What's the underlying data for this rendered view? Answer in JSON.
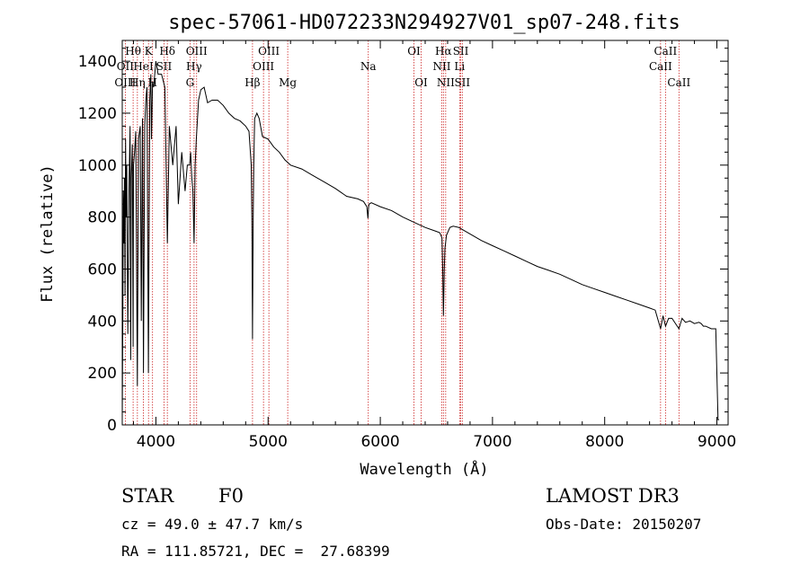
{
  "chart_data": {
    "type": "line",
    "title": "spec-57061-HD072233N294927V01_sp07-248.fits",
    "xlabel": "Wavelength (Å)",
    "ylabel": "Flux (relative)",
    "xlim": [
      3700,
      9100
    ],
    "ylim": [
      0,
      1480
    ],
    "xticks": [
      4000,
      5000,
      6000,
      7000,
      8000,
      9000
    ],
    "yticks": [
      0,
      200,
      400,
      600,
      800,
      1000,
      1200,
      1400
    ],
    "series": [
      {
        "name": "flux",
        "x": [
          3700,
          3705,
          3710,
          3715,
          3720,
          3725,
          3730,
          3735,
          3740,
          3750,
          3760,
          3770,
          3775,
          3780,
          3790,
          3797,
          3800,
          3810,
          3820,
          3835,
          3845,
          3860,
          3870,
          3880,
          3889,
          3900,
          3910,
          3920,
          3933,
          3945,
          3955,
          3960,
          3970,
          3980,
          4000,
          4020,
          4050,
          4080,
          4102,
          4120,
          4150,
          4180,
          4200,
          4230,
          4260,
          4280,
          4300,
          4310,
          4320,
          4330,
          4340,
          4350,
          4360,
          4380,
          4400,
          4430,
          4460,
          4500,
          4550,
          4600,
          4650,
          4700,
          4750,
          4800,
          4830,
          4850,
          4855,
          4861,
          4867,
          4872,
          4880,
          4900,
          4920,
          4950,
          5000,
          5050,
          5100,
          5150,
          5200,
          5300,
          5400,
          5500,
          5600,
          5700,
          5800,
          5850,
          5880,
          5890,
          5896,
          5900,
          5920,
          6000,
          6100,
          6200,
          6300,
          6400,
          6500,
          6530,
          6550,
          6556,
          6563,
          6570,
          6576,
          6590,
          6620,
          6650,
          6700,
          6800,
          6900,
          7000,
          7100,
          7200,
          7300,
          7400,
          7500,
          7600,
          7700,
          7800,
          7900,
          8000,
          8100,
          8200,
          8300,
          8400,
          8450,
          8498,
          8520,
          8542,
          8570,
          8600,
          8662,
          8690,
          8720,
          8760,
          8800,
          8840,
          8860,
          8880,
          8900,
          8950,
          8990,
          9000,
          9010,
          9020
        ],
        "values": [
          20,
          400,
          900,
          700,
          950,
          500,
          1100,
          800,
          1000,
          350,
          900,
          1150,
          250,
          950,
          1080,
          300,
          1000,
          1050,
          1130,
          150,
          1100,
          1150,
          400,
          1180,
          200,
          1150,
          1250,
          1300,
          200,
          1250,
          1350,
          1100,
          1320,
          1300,
          1400,
          1350,
          1350,
          1300,
          700,
          1150,
          1000,
          1150,
          850,
          1050,
          900,
          1000,
          1000,
          1050,
          950,
          900,
          700,
          1000,
          1100,
          1250,
          1290,
          1300,
          1240,
          1250,
          1250,
          1230,
          1200,
          1180,
          1170,
          1150,
          1130,
          1000,
          800,
          330,
          800,
          1000,
          1180,
          1200,
          1180,
          1110,
          1100,
          1070,
          1050,
          1020,
          1000,
          985,
          960,
          935,
          910,
          880,
          870,
          860,
          840,
          795,
          840,
          850,
          855,
          840,
          825,
          800,
          780,
          760,
          745,
          740,
          720,
          600,
          420,
          590,
          680,
          730,
          760,
          765,
          760,
          735,
          710,
          690,
          670,
          650,
          630,
          610,
          595,
          580,
          560,
          540,
          525,
          510,
          495,
          480,
          465,
          450,
          442,
          370,
          420,
          380,
          410,
          410,
          370,
          410,
          395,
          400,
          390,
          395,
          390,
          380,
          380,
          370,
          370,
          200,
          20,
          20
        ]
      }
    ],
    "lines": [
      {
        "label": "Hθ",
        "wl": 3797,
        "row": 1
      },
      {
        "label": "K",
        "wl": 3934,
        "row": 1
      },
      {
        "label": "Hδ",
        "wl": 4102,
        "row": 1
      },
      {
        "label": "OII",
        "wl": 3727,
        "row": 2
      },
      {
        "label": "HeI",
        "wl": 3889,
        "row": 2
      },
      {
        "label": "SII",
        "wl": 4072,
        "row": 2
      },
      {
        "label": "OIII",
        "wl": 3727,
        "row": 3
      },
      {
        "label": "Hη",
        "wl": 3835,
        "row": 3
      },
      {
        "label": "H",
        "wl": 3970,
        "row": 3
      },
      {
        "label": "OIII",
        "wl": 4363,
        "row": 1
      },
      {
        "label": "Hγ",
        "wl": 4340,
        "row": 2
      },
      {
        "label": "G",
        "wl": 4304,
        "row": 3
      },
      {
        "label": "OIII",
        "wl": 5007,
        "row": 1
      },
      {
        "label": "OIII",
        "wl": 4959,
        "row": 2
      },
      {
        "label": "Hβ",
        "wl": 4861,
        "row": 3
      },
      {
        "label": "Mg",
        "wl": 5175,
        "row": 3
      },
      {
        "label": "Na",
        "wl": 5893,
        "row": 2
      },
      {
        "label": "OI",
        "wl": 6300,
        "row": 1
      },
      {
        "label": "OI",
        "wl": 6364,
        "row": 3
      },
      {
        "label": "Hα",
        "wl": 6563,
        "row": 1
      },
      {
        "label": "SII",
        "wl": 6717,
        "row": 1
      },
      {
        "label": "NII",
        "wl": 6548,
        "row": 2
      },
      {
        "label": "Li",
        "wl": 6707,
        "row": 2
      },
      {
        "label": "NII",
        "wl": 6583,
        "row": 3
      },
      {
        "label": "SII",
        "wl": 6731,
        "row": 3
      },
      {
        "label": "CaII",
        "wl": 8542,
        "row": 1
      },
      {
        "label": "CaII",
        "wl": 8498,
        "row": 2
      },
      {
        "label": "CaII",
        "wl": 8662,
        "row": 3
      }
    ],
    "line_wavelengths": [
      3727,
      3797,
      3835,
      3889,
      3934,
      3970,
      4072,
      4102,
      4304,
      4340,
      4363,
      4861,
      4959,
      5007,
      5175,
      5893,
      6300,
      6364,
      6548,
      6563,
      6583,
      6707,
      6717,
      6731,
      8498,
      8542,
      8662
    ]
  },
  "info": {
    "object_type": "STAR",
    "subclass": "F0",
    "survey": "LAMOST DR3",
    "cz": "cz = 49.0 ± 47.7 km/s",
    "obs_date": "Obs-Date: 20150207",
    "coords": "RA = 111.85721, DEC =  27.68399"
  },
  "colors": {
    "line_marker": "#cc2222",
    "spectrum": "#000000"
  }
}
